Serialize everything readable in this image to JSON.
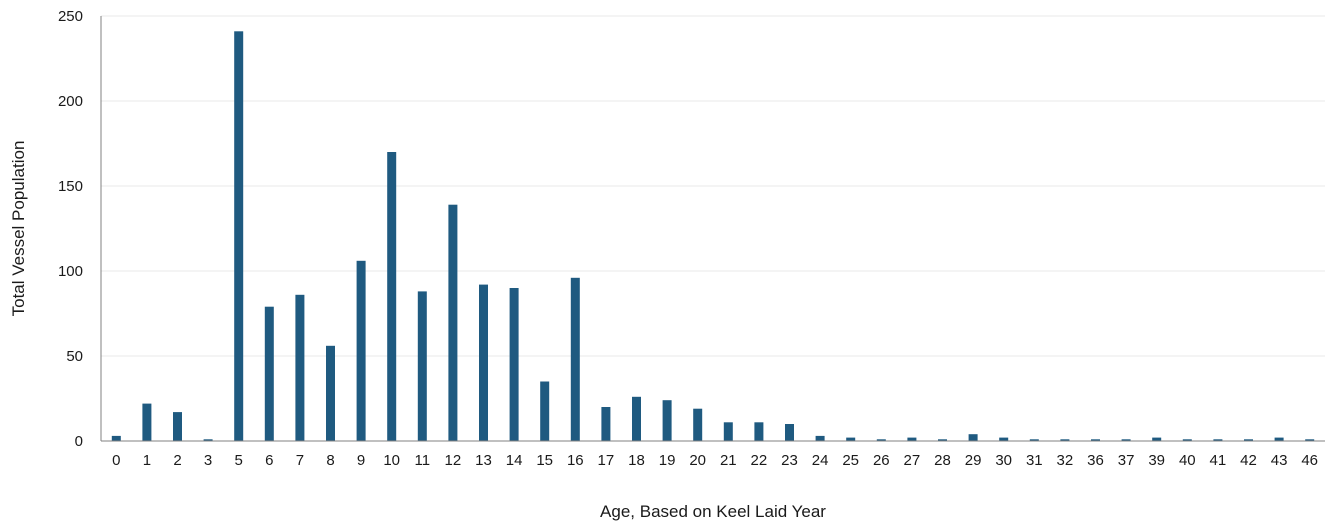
{
  "chart_data": {
    "type": "bar",
    "title": "",
    "xlabel": "Age, Based on Keel Laid Year",
    "ylabel": "Total Vessel Population",
    "ylim": [
      0,
      250
    ],
    "yticks": [
      0,
      50,
      100,
      150,
      200,
      250
    ],
    "grid": "horizontal",
    "legend": "none",
    "bar_color": "#1f5a80",
    "grid_color": "#e9e9e9",
    "axis_color": "#808080",
    "categories": [
      "0",
      "1",
      "2",
      "3",
      "5",
      "6",
      "7",
      "8",
      "9",
      "10",
      "11",
      "12",
      "13",
      "14",
      "15",
      "16",
      "17",
      "18",
      "19",
      "20",
      "21",
      "22",
      "23",
      "24",
      "25",
      "26",
      "27",
      "28",
      "29",
      "30",
      "31",
      "32",
      "36",
      "37",
      "39",
      "40",
      "41",
      "42",
      "43",
      "46"
    ],
    "values": [
      3,
      22,
      17,
      1,
      241,
      79,
      86,
      56,
      106,
      170,
      88,
      139,
      92,
      90,
      35,
      96,
      20,
      26,
      24,
      19,
      11,
      11,
      10,
      3,
      2,
      1,
      2,
      1,
      4,
      2,
      1,
      1,
      1,
      1,
      2,
      1,
      1,
      1,
      2,
      1
    ]
  }
}
